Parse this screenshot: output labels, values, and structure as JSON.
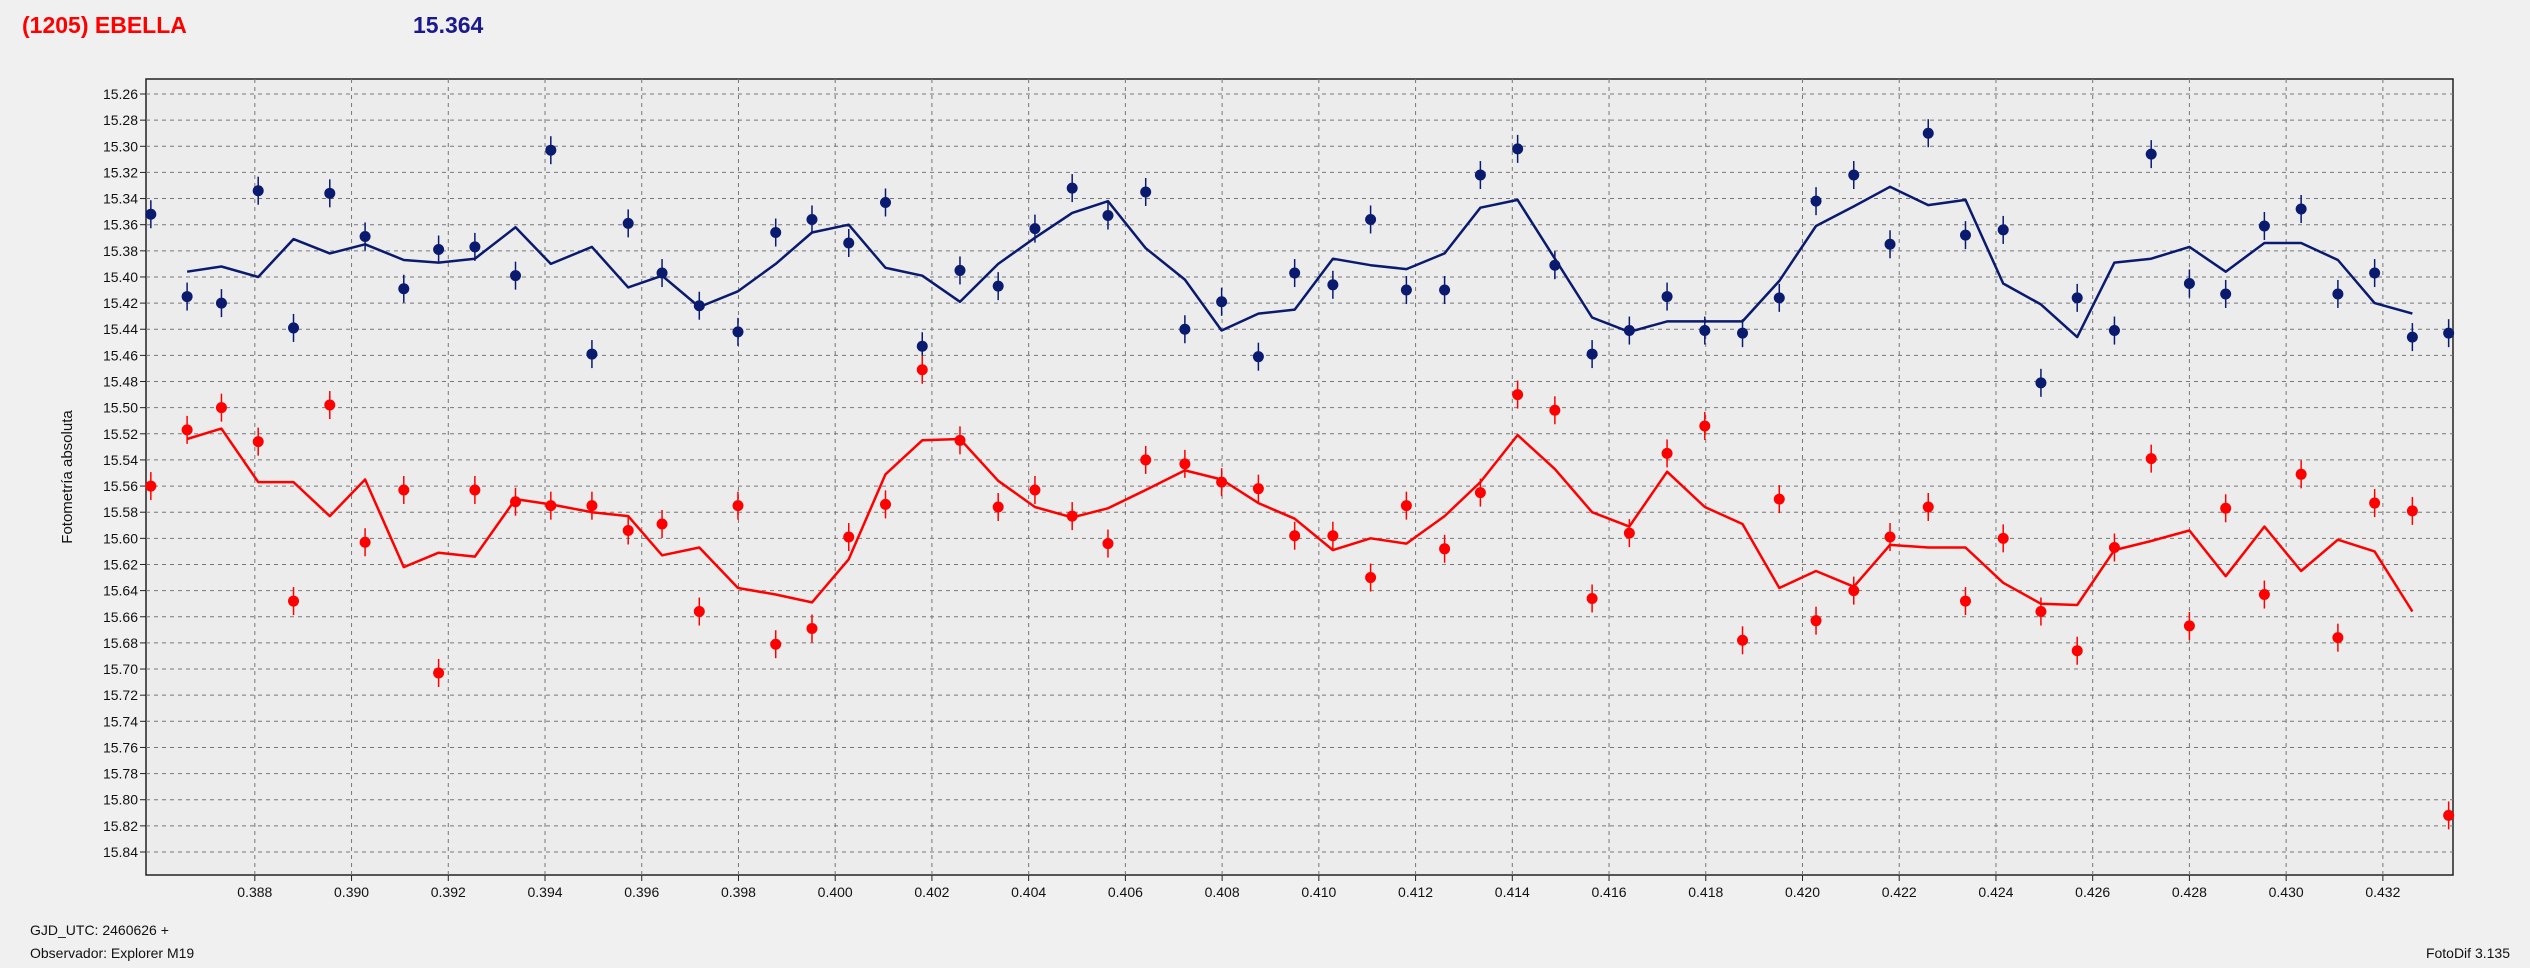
{
  "header": {
    "object": "(1205) EBELLA",
    "magnitude": "15.364"
  },
  "footer": {
    "gjd": "GJD_UTC: 2460626 +",
    "observer": "Observador: Explorer M19",
    "version": "FotoDif 3.135"
  },
  "chart_data": {
    "type": "scatter",
    "title": "",
    "xlabel": "",
    "ylabel": "Fotometría absoluta",
    "xlim": [
      0.38575,
      0.43345
    ],
    "ylim": [
      15.26,
      15.84
    ],
    "y_inverted": true,
    "xticks": [
      "0.388",
      "0.390",
      "0.392",
      "0.394",
      "0.396",
      "0.398",
      "0.400",
      "0.402",
      "0.404",
      "0.406",
      "0.408",
      "0.410",
      "0.412",
      "0.414",
      "0.416",
      "0.418",
      "0.420",
      "0.422",
      "0.424",
      "0.426",
      "0.428",
      "0.430",
      "0.432"
    ],
    "yticks": [
      "15.26",
      "15.28",
      "15.30",
      "15.32",
      "15.34",
      "15.36",
      "15.38",
      "15.40",
      "15.42",
      "15.44",
      "15.46",
      "15.48",
      "15.50",
      "15.52",
      "15.54",
      "15.56",
      "15.58",
      "15.60",
      "15.62",
      "15.64",
      "15.66",
      "15.68",
      "15.70",
      "15.72",
      "15.74",
      "15.76",
      "15.78",
      "15.80",
      "15.82",
      "15.84"
    ],
    "grid": true,
    "series": [
      {
        "color": "#0a1a6e",
        "points": [
          [
            0.38585,
            15.352
          ],
          [
            0.3866,
            15.415
          ],
          [
            0.38731,
            15.42
          ],
          [
            0.38807,
            15.334
          ],
          [
            0.3888,
            15.439
          ],
          [
            0.38955,
            15.336
          ],
          [
            0.39028,
            15.369
          ],
          [
            0.39108,
            15.409
          ],
          [
            0.3918,
            15.379
          ],
          [
            0.39255,
            15.377
          ],
          [
            0.39339,
            15.399
          ],
          [
            0.39412,
            15.303
          ],
          [
            0.39497,
            15.459
          ],
          [
            0.39572,
            15.359
          ],
          [
            0.39642,
            15.397
          ],
          [
            0.39719,
            15.422
          ],
          [
            0.39799,
            15.442
          ],
          [
            0.39877,
            15.366
          ],
          [
            0.39952,
            15.356
          ],
          [
            0.40028,
            15.374
          ],
          [
            0.40104,
            15.343
          ],
          [
            0.4018,
            15.453
          ],
          [
            0.40258,
            15.395
          ],
          [
            0.40337,
            15.407
          ],
          [
            0.40413,
            15.363
          ],
          [
            0.4049,
            15.332
          ],
          [
            0.40564,
            15.353
          ],
          [
            0.40642,
            15.335
          ],
          [
            0.40723,
            15.44
          ],
          [
            0.40799,
            15.419
          ],
          [
            0.40875,
            15.461
          ],
          [
            0.4095,
            15.397
          ],
          [
            0.41029,
            15.406
          ],
          [
            0.41107,
            15.356
          ],
          [
            0.41181,
            15.41
          ],
          [
            0.4126,
            15.41
          ],
          [
            0.41334,
            15.322
          ],
          [
            0.41411,
            15.302
          ],
          [
            0.41488,
            15.391
          ],
          [
            0.41565,
            15.459
          ],
          [
            0.41642,
            15.441
          ],
          [
            0.4172,
            15.415
          ],
          [
            0.41798,
            15.441
          ],
          [
            0.41876,
            15.443
          ],
          [
            0.41952,
            15.416
          ],
          [
            0.42028,
            15.342
          ],
          [
            0.42106,
            15.322
          ],
          [
            0.42181,
            15.375
          ],
          [
            0.4226,
            15.29
          ],
          [
            0.42337,
            15.368
          ],
          [
            0.42415,
            15.364
          ],
          [
            0.42493,
            15.481
          ],
          [
            0.42568,
            15.416
          ],
          [
            0.42645,
            15.441
          ],
          [
            0.42721,
            15.306
          ],
          [
            0.428,
            15.405
          ],
          [
            0.42875,
            15.413
          ],
          [
            0.42955,
            15.361
          ],
          [
            0.43031,
            15.348
          ],
          [
            0.43107,
            15.413
          ],
          [
            0.43183,
            15.397
          ],
          [
            0.43261,
            15.446
          ],
          [
            0.43336,
            15.443
          ]
        ],
        "line": [
          [
            0.3866,
            15.396
          ],
          [
            0.38731,
            15.392
          ],
          [
            0.38807,
            15.4
          ],
          [
            0.3888,
            15.371
          ],
          [
            0.38955,
            15.382
          ],
          [
            0.39028,
            15.375
          ],
          [
            0.39108,
            15.387
          ],
          [
            0.3918,
            15.389
          ],
          [
            0.39255,
            15.386
          ],
          [
            0.39339,
            15.362
          ],
          [
            0.39412,
            15.39
          ],
          [
            0.39497,
            15.377
          ],
          [
            0.39572,
            15.408
          ],
          [
            0.39642,
            15.399
          ],
          [
            0.39719,
            15.423
          ],
          [
            0.39799,
            15.411
          ],
          [
            0.39877,
            15.39
          ],
          [
            0.39952,
            15.366
          ],
          [
            0.40028,
            15.36
          ],
          [
            0.40104,
            15.393
          ],
          [
            0.4018,
            15.399
          ],
          [
            0.40258,
            15.419
          ],
          [
            0.40337,
            15.39
          ],
          [
            0.40413,
            15.37
          ],
          [
            0.4049,
            15.351
          ],
          [
            0.40564,
            15.342
          ],
          [
            0.40642,
            15.378
          ],
          [
            0.40723,
            15.402
          ],
          [
            0.40799,
            15.441
          ],
          [
            0.40875,
            15.428
          ],
          [
            0.4095,
            15.425
          ],
          [
            0.41029,
            15.386
          ],
          [
            0.41107,
            15.391
          ],
          [
            0.41181,
            15.394
          ],
          [
            0.4126,
            15.382
          ],
          [
            0.41334,
            15.347
          ],
          [
            0.41411,
            15.341
          ],
          [
            0.41488,
            15.386
          ],
          [
            0.41565,
            15.431
          ],
          [
            0.41642,
            15.442
          ],
          [
            0.4172,
            15.434
          ],
          [
            0.41798,
            15.434
          ],
          [
            0.41876,
            15.434
          ],
          [
            0.41952,
            15.403
          ],
          [
            0.42028,
            15.361
          ],
          [
            0.42106,
            15.346
          ],
          [
            0.42181,
            15.331
          ],
          [
            0.4226,
            15.345
          ],
          [
            0.42337,
            15.341
          ],
          [
            0.42415,
            15.405
          ],
          [
            0.42493,
            15.421
          ],
          [
            0.42568,
            15.446
          ],
          [
            0.42645,
            15.389
          ],
          [
            0.42721,
            15.386
          ],
          [
            0.428,
            15.377
          ],
          [
            0.42875,
            15.396
          ],
          [
            0.42955,
            15.374
          ],
          [
            0.43031,
            15.374
          ],
          [
            0.43107,
            15.387
          ],
          [
            0.43183,
            15.42
          ],
          [
            0.43261,
            15.428
          ]
        ]
      },
      {
        "color": "#ff0000",
        "points": [
          [
            0.38585,
            15.56
          ],
          [
            0.3866,
            15.517
          ],
          [
            0.38731,
            15.5
          ],
          [
            0.38807,
            15.526
          ],
          [
            0.3888,
            15.648
          ],
          [
            0.38955,
            15.498
          ],
          [
            0.39028,
            15.603
          ],
          [
            0.39108,
            15.563
          ],
          [
            0.3918,
            15.703
          ],
          [
            0.39255,
            15.563
          ],
          [
            0.39339,
            15.572
          ],
          [
            0.39412,
            15.575
          ],
          [
            0.39497,
            15.575
          ],
          [
            0.39572,
            15.594
          ],
          [
            0.39642,
            15.589
          ],
          [
            0.39719,
            15.656
          ],
          [
            0.39799,
            15.575
          ],
          [
            0.39877,
            15.681
          ],
          [
            0.39952,
            15.669
          ],
          [
            0.40028,
            15.599
          ],
          [
            0.40104,
            15.574
          ],
          [
            0.4018,
            15.471
          ],
          [
            0.40258,
            15.525
          ],
          [
            0.40337,
            15.576
          ],
          [
            0.40413,
            15.563
          ],
          [
            0.4049,
            15.583
          ],
          [
            0.40564,
            15.604
          ],
          [
            0.40642,
            15.54
          ],
          [
            0.40723,
            15.543
          ],
          [
            0.40799,
            15.557
          ],
          [
            0.40875,
            15.562
          ],
          [
            0.4095,
            15.598
          ],
          [
            0.41029,
            15.598
          ],
          [
            0.41107,
            15.63
          ],
          [
            0.41181,
            15.575
          ],
          [
            0.4126,
            15.608
          ],
          [
            0.41334,
            15.565
          ],
          [
            0.41411,
            15.49
          ],
          [
            0.41488,
            15.502
          ],
          [
            0.41565,
            15.646
          ],
          [
            0.41642,
            15.596
          ],
          [
            0.4172,
            15.535
          ],
          [
            0.41798,
            15.514
          ],
          [
            0.41876,
            15.678
          ],
          [
            0.41952,
            15.57
          ],
          [
            0.42028,
            15.663
          ],
          [
            0.42106,
            15.64
          ],
          [
            0.42181,
            15.599
          ],
          [
            0.4226,
            15.576
          ],
          [
            0.42337,
            15.648
          ],
          [
            0.42415,
            15.6
          ],
          [
            0.42493,
            15.656
          ],
          [
            0.42568,
            15.686
          ],
          [
            0.42645,
            15.607
          ],
          [
            0.42721,
            15.539
          ],
          [
            0.428,
            15.667
          ],
          [
            0.42875,
            15.577
          ],
          [
            0.42955,
            15.643
          ],
          [
            0.43031,
            15.551
          ],
          [
            0.43107,
            15.676
          ],
          [
            0.43183,
            15.573
          ],
          [
            0.43261,
            15.579
          ],
          [
            0.43336,
            15.812
          ]
        ],
        "line": [
          [
            0.3866,
            15.524
          ],
          [
            0.38731,
            15.516
          ],
          [
            0.38807,
            15.557
          ],
          [
            0.3888,
            15.557
          ],
          [
            0.38955,
            15.583
          ],
          [
            0.39028,
            15.555
          ],
          [
            0.39108,
            15.622
          ],
          [
            0.3918,
            15.611
          ],
          [
            0.39255,
            15.614
          ],
          [
            0.39339,
            15.57
          ],
          [
            0.39412,
            15.574
          ],
          [
            0.39497,
            15.58
          ],
          [
            0.39572,
            15.583
          ],
          [
            0.39642,
            15.613
          ],
          [
            0.39719,
            15.607
          ],
          [
            0.39799,
            15.638
          ],
          [
            0.39877,
            15.643
          ],
          [
            0.39952,
            15.649
          ],
          [
            0.40028,
            15.616
          ],
          [
            0.40104,
            15.551
          ],
          [
            0.4018,
            15.525
          ],
          [
            0.40258,
            15.524
          ],
          [
            0.40337,
            15.556
          ],
          [
            0.40413,
            15.576
          ],
          [
            0.4049,
            15.584
          ],
          [
            0.40564,
            15.577
          ],
          [
            0.40642,
            15.563
          ],
          [
            0.40723,
            15.548
          ],
          [
            0.40799,
            15.555
          ],
          [
            0.40875,
            15.573
          ],
          [
            0.4095,
            15.585
          ],
          [
            0.41029,
            15.609
          ],
          [
            0.41107,
            15.6
          ],
          [
            0.41181,
            15.604
          ],
          [
            0.4126,
            15.583
          ],
          [
            0.41334,
            15.557
          ],
          [
            0.41411,
            15.521
          ],
          [
            0.41488,
            15.547
          ],
          [
            0.41565,
            15.58
          ],
          [
            0.41642,
            15.591
          ],
          [
            0.4172,
            15.549
          ],
          [
            0.41798,
            15.576
          ],
          [
            0.41876,
            15.589
          ],
          [
            0.41952,
            15.638
          ],
          [
            0.42028,
            15.625
          ],
          [
            0.42106,
            15.637
          ],
          [
            0.42181,
            15.605
          ],
          [
            0.4226,
            15.607
          ],
          [
            0.42337,
            15.607
          ],
          [
            0.42415,
            15.634
          ],
          [
            0.42493,
            15.65
          ],
          [
            0.42568,
            15.651
          ],
          [
            0.42645,
            15.609
          ],
          [
            0.42721,
            15.602
          ],
          [
            0.428,
            15.594
          ],
          [
            0.42875,
            15.629
          ],
          [
            0.42955,
            15.591
          ],
          [
            0.43031,
            15.625
          ],
          [
            0.43107,
            15.601
          ],
          [
            0.43183,
            15.61
          ],
          [
            0.43261,
            15.656
          ]
        ]
      }
    ]
  }
}
